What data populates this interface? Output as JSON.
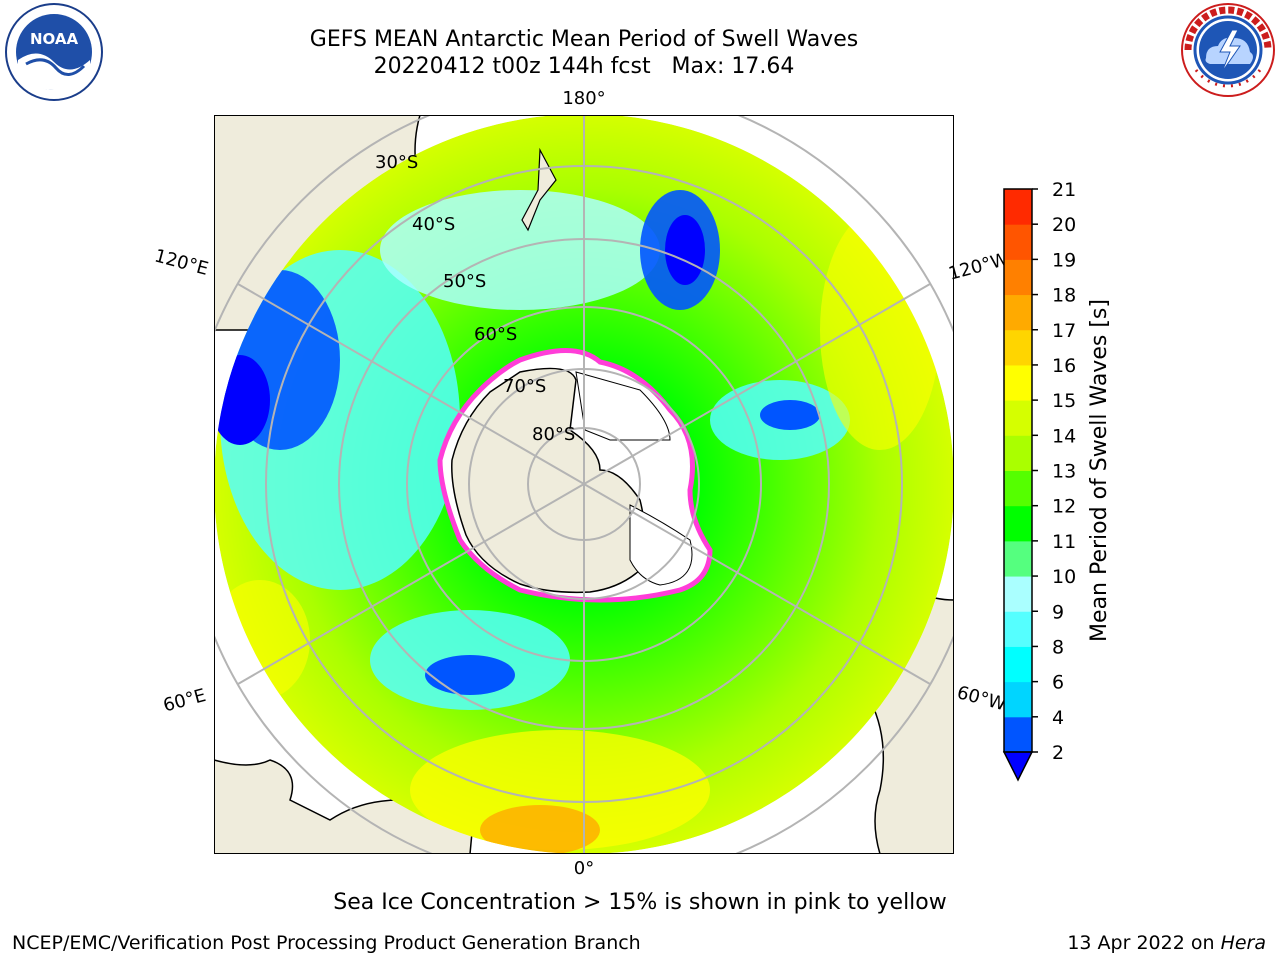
{
  "title": {
    "line1": "GEFS MEAN Antarctic Mean Period of Swell Waves",
    "line2": "20220412 t00z 144h fcst   Max: 17.64"
  },
  "logos": {
    "left": {
      "icon": "noaa-logo",
      "text": "NOAA"
    },
    "right": {
      "icon": "national-weather-service-logo"
    }
  },
  "map": {
    "projection": "south-polar-stereographic",
    "latitude_labels": [
      "30°S",
      "40°S",
      "50°S",
      "60°S",
      "70°S",
      "80°S"
    ],
    "longitude_labels": {
      "top": "180°",
      "bottom": "0°",
      "upper_left": "120°E",
      "lower_left": "60°E",
      "upper_right": "120°W",
      "lower_right": "60°W"
    },
    "colors": {
      "land": "#efecdc",
      "ocean_background": "#ffffff",
      "gridline": "#b4b4b4",
      "ice_edge": "#ff3dd8"
    }
  },
  "colorbar": {
    "label": "Mean Period of Swell Waves [s]",
    "ticks": [
      "2",
      "4",
      "6",
      "8",
      "9",
      "10",
      "11",
      "12",
      "13",
      "14",
      "15",
      "16",
      "17",
      "18",
      "19",
      "20",
      "21"
    ],
    "colors": [
      "#0000ff",
      "#0055ff",
      "#00d5ff",
      "#00ffff",
      "#55ffff",
      "#aaffff",
      "#55ff7f",
      "#00ff00",
      "#55ff00",
      "#aaff00",
      "#d5ff00",
      "#ffff00",
      "#ffd500",
      "#ffaa00",
      "#ff8000",
      "#ff5500",
      "#ff2a00",
      "#ff0000"
    ],
    "extend": "min"
  },
  "footer": {
    "sea_ice_note": "Sea Ice Concentration > 15% is shown in pink to yellow",
    "credit_left": "NCEP/EMC/Verification Post Processing Product Generation Branch",
    "credit_date": "13 Apr 2022 on ",
    "credit_host": "Hera"
  }
}
